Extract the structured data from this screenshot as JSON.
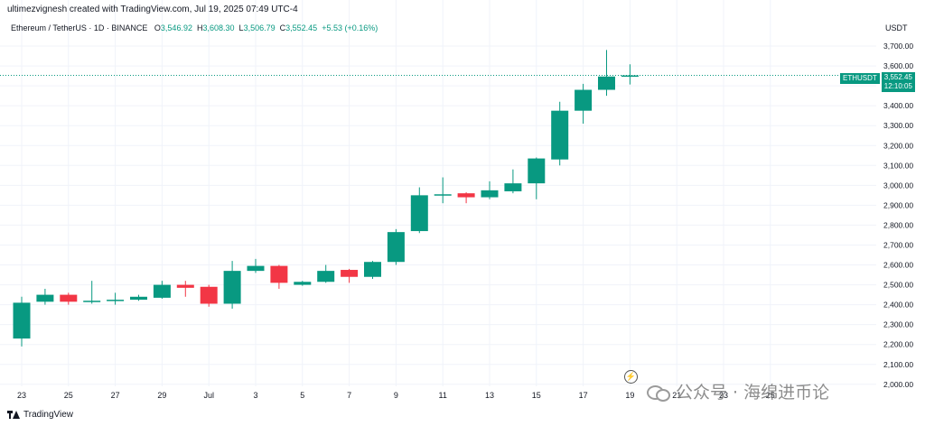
{
  "header": {
    "created_by": "ultimezvignesh created with TradingView.com, Jul 19, 2025 07:49 UTC-4",
    "symbol_line": "Ethereum / TetherUS · 1D · BINANCE",
    "ohlc": {
      "o_label": "O",
      "o": "3,546.92",
      "h_label": "H",
      "h": "3,608.30",
      "l_label": "L",
      "l": "3,506.79",
      "c_label": "C",
      "c": "3,552.45",
      "change": "+5.53 (+0.16%)"
    },
    "currency": "USDT"
  },
  "price_tag": {
    "symbol": "ETHUSDT",
    "price": "3,552.45",
    "countdown": "12:10:05"
  },
  "footer": {
    "brand": "TradingView"
  },
  "watermark": {
    "text": "公众号 · 海绵进币论"
  },
  "colors": {
    "up": "#089981",
    "down": "#f23645",
    "grid": "#f0f3fa",
    "text": "#131722"
  },
  "chart_data": {
    "type": "candlestick",
    "title": "Ethereum / TetherUS · 1D · BINANCE",
    "ylim": [
      2000,
      3750
    ],
    "y_ticks": [
      2000,
      2100,
      2200,
      2300,
      2400,
      2500,
      2600,
      2700,
      2800,
      2900,
      3000,
      3100,
      3200,
      3300,
      3400,
      3500,
      3600,
      3700
    ],
    "y_tick_labels": [
      "2,000.00",
      "2,100.00",
      "2,200.00",
      "2,300.00",
      "2,400.00",
      "2,500.00",
      "2,600.00",
      "2,700.00",
      "2,800.00",
      "2,900.00",
      "3,000.00",
      "3,100.00",
      "3,200.00",
      "3,300.00",
      "3,400.00",
      "3,500.00",
      "3,600.00",
      "3,700.00"
    ],
    "x_ticks": [
      {
        "day": 0,
        "label": "23"
      },
      {
        "day": 2,
        "label": "25"
      },
      {
        "day": 4,
        "label": "27"
      },
      {
        "day": 6,
        "label": "29"
      },
      {
        "day": 8,
        "label": "Jul"
      },
      {
        "day": 10,
        "label": "3"
      },
      {
        "day": 12,
        "label": "5"
      },
      {
        "day": 14,
        "label": "7"
      },
      {
        "day": 16,
        "label": "9"
      },
      {
        "day": 18,
        "label": "11"
      },
      {
        "day": 20,
        "label": "13"
      },
      {
        "day": 22,
        "label": "15"
      },
      {
        "day": 24,
        "label": "17"
      },
      {
        "day": 26,
        "label": "19"
      },
      {
        "day": 28,
        "label": "21"
      },
      {
        "day": 30,
        "label": "23"
      },
      {
        "day": 32,
        "label": "25"
      }
    ],
    "candles": [
      {
        "date": "Jun 23",
        "o": 2230,
        "h": 2440,
        "l": 2190,
        "c": 2410
      },
      {
        "date": "Jun 24",
        "o": 2415,
        "h": 2480,
        "l": 2400,
        "c": 2450
      },
      {
        "date": "Jun 25",
        "o": 2450,
        "h": 2460,
        "l": 2400,
        "c": 2415
      },
      {
        "date": "Jun 26",
        "o": 2418,
        "h": 2520,
        "l": 2405,
        "c": 2420
      },
      {
        "date": "Jun 27",
        "o": 2420,
        "h": 2460,
        "l": 2400,
        "c": 2425
      },
      {
        "date": "Jun 28",
        "o": 2425,
        "h": 2450,
        "l": 2420,
        "c": 2440
      },
      {
        "date": "Jun 29",
        "o": 2435,
        "h": 2520,
        "l": 2430,
        "c": 2500
      },
      {
        "date": "Jun 30",
        "o": 2500,
        "h": 2520,
        "l": 2440,
        "c": 2485
      },
      {
        "date": "Jul 1",
        "o": 2490,
        "h": 2500,
        "l": 2390,
        "c": 2405
      },
      {
        "date": "Jul 2",
        "o": 2405,
        "h": 2620,
        "l": 2380,
        "c": 2570
      },
      {
        "date": "Jul 3",
        "o": 2570,
        "h": 2630,
        "l": 2560,
        "c": 2595
      },
      {
        "date": "Jul 4",
        "o": 2595,
        "h": 2600,
        "l": 2480,
        "c": 2510
      },
      {
        "date": "Jul 5",
        "o": 2500,
        "h": 2520,
        "l": 2495,
        "c": 2515
      },
      {
        "date": "Jul 6",
        "o": 2515,
        "h": 2600,
        "l": 2510,
        "c": 2570
      },
      {
        "date": "Jul 7",
        "o": 2575,
        "h": 2580,
        "l": 2510,
        "c": 2540
      },
      {
        "date": "Jul 8",
        "o": 2540,
        "h": 2620,
        "l": 2530,
        "c": 2615
      },
      {
        "date": "Jul 9",
        "o": 2615,
        "h": 2780,
        "l": 2600,
        "c": 2765
      },
      {
        "date": "Jul 10",
        "o": 2770,
        "h": 2990,
        "l": 2760,
        "c": 2950
      },
      {
        "date": "Jul 11",
        "o": 2950,
        "h": 3040,
        "l": 2910,
        "c": 2955
      },
      {
        "date": "Jul 12",
        "o": 2960,
        "h": 2965,
        "l": 2910,
        "c": 2940
      },
      {
        "date": "Jul 13",
        "o": 2940,
        "h": 3020,
        "l": 2930,
        "c": 2975
      },
      {
        "date": "Jul 14",
        "o": 2970,
        "h": 3080,
        "l": 2960,
        "c": 3010
      },
      {
        "date": "Jul 15",
        "o": 3010,
        "h": 3140,
        "l": 2930,
        "c": 3135
      },
      {
        "date": "Jul 16",
        "o": 3130,
        "h": 3420,
        "l": 3100,
        "c": 3375
      },
      {
        "date": "Jul 17",
        "o": 3375,
        "h": 3510,
        "l": 3310,
        "c": 3480
      },
      {
        "date": "Jul 18",
        "o": 3480,
        "h": 3680,
        "l": 3450,
        "c": 3546.92
      },
      {
        "date": "Jul 19",
        "o": 3546.92,
        "h": 3608.3,
        "l": 3506.79,
        "c": 3552.45
      }
    ],
    "last_price": 3552.45
  }
}
